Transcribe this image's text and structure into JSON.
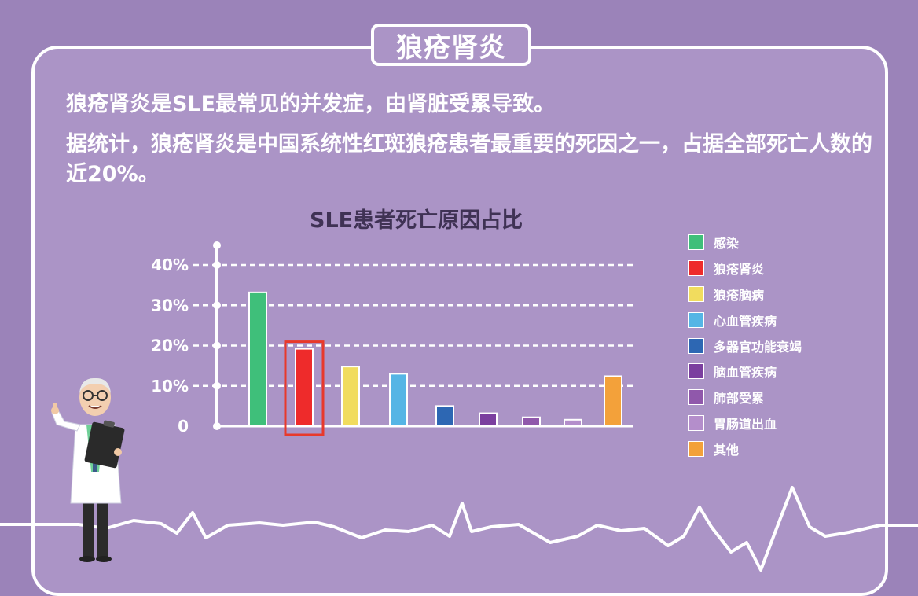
{
  "header": {
    "title": "狼疮肾炎"
  },
  "text": {
    "line1": "狼疮肾炎是SLE最常见的并发症，由肾脏受累导致。",
    "line2": "据统计，狼疮肾炎是中国系统性红斑狼疮患者最重要的死因之一，占据全部死亡人数的近20%。"
  },
  "chart_data": {
    "type": "bar",
    "title": "SLE患者死亡原因占比",
    "categories": [
      "感染",
      "狼疮肾炎",
      "狼疮脑病",
      "心血管疾病",
      "多器官功能衰竭",
      "脑血管疾病",
      "肺部受累",
      "胃肠道出血",
      "其他"
    ],
    "values": [
      33.2,
      19.2,
      14.8,
      13.0,
      5.0,
      3.2,
      2.2,
      1.6,
      12.4
    ],
    "colors": [
      "#3fbf7a",
      "#ee2b2b",
      "#f1dc5e",
      "#55b5e5",
      "#2d67b3",
      "#7b3f9f",
      "#9058ab",
      "#b48ecb",
      "#f3a13a"
    ],
    "yticks": [
      "0",
      "10%",
      "20%",
      "30%",
      "40%"
    ],
    "ylim": [
      0,
      40
    ],
    "highlight_index": 1,
    "highlight_color": "#e8392b",
    "grid": true,
    "legend_position": "right"
  }
}
